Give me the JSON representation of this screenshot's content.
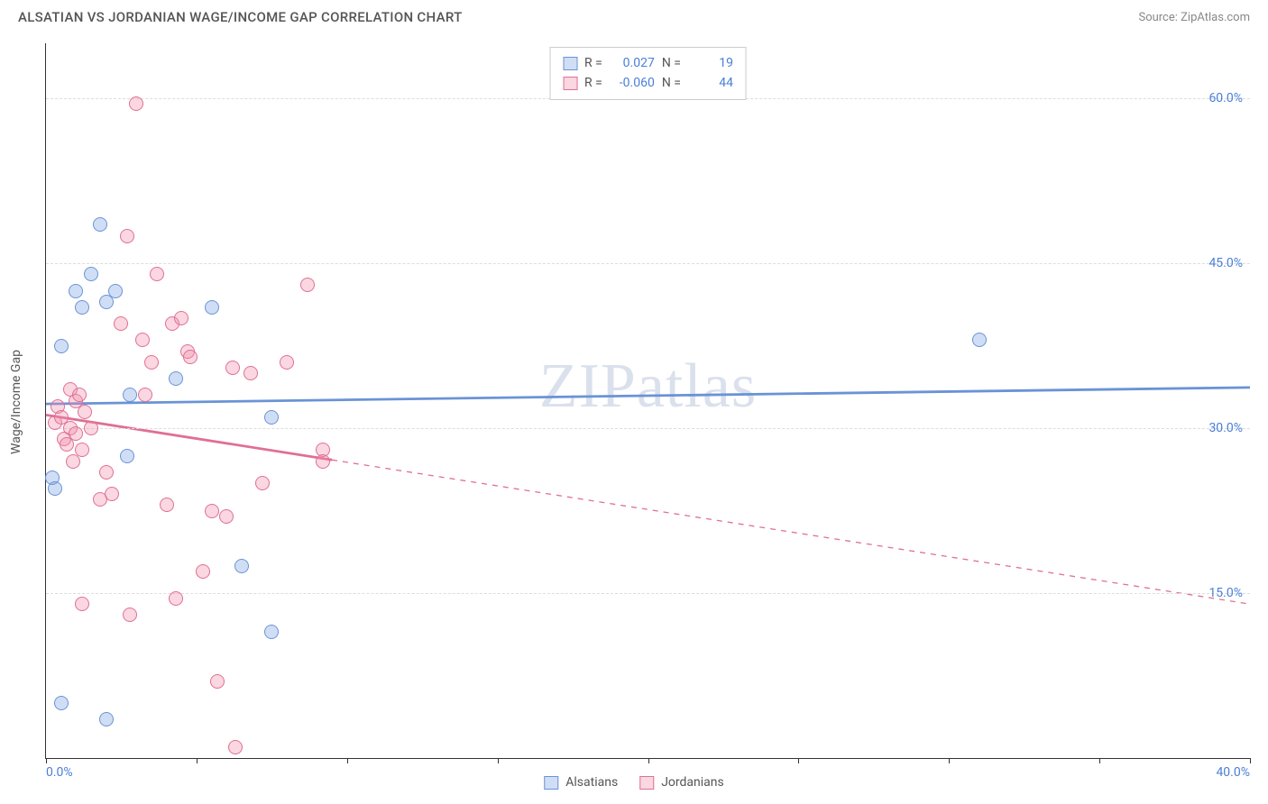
{
  "title": "ALSATIAN VS JORDANIAN WAGE/INCOME GAP CORRELATION CHART",
  "source": "Source: ZipAtlas.com",
  "watermark": "ZIPatlas",
  "ylabel": "Wage/Income Gap",
  "chart": {
    "type": "scatter",
    "xlim": [
      0,
      40
    ],
    "ylim": [
      0,
      65
    ],
    "xticks": [
      0,
      5,
      10,
      15,
      20,
      25,
      30,
      35,
      40
    ],
    "xtick_labels": [
      "0.0%",
      "",
      "",
      "",
      "",
      "",
      "",
      "",
      "40.0%"
    ],
    "yticks": [
      15,
      30,
      45,
      60
    ],
    "ytick_labels": [
      "15.0%",
      "30.0%",
      "45.0%",
      "60.0%"
    ],
    "background_color": "#ffffff",
    "grid_color": "#dddddd",
    "axis_color": "#333333",
    "label_color": "#4a7fd8",
    "title_fontsize": 15,
    "tick_fontsize": 14,
    "marker_radius": 8,
    "marker_stroke_width": 1.2,
    "series": [
      {
        "name": "Alsatians",
        "fill": "rgba(120,160,225,0.35)",
        "stroke": "#6a93d6",
        "R": "0.027",
        "N": "19",
        "points": [
          [
            0.2,
            25.5
          ],
          [
            0.3,
            24.5
          ],
          [
            0.5,
            37.5
          ],
          [
            0.5,
            5.0
          ],
          [
            1.0,
            42.5
          ],
          [
            1.2,
            41.0
          ],
          [
            1.5,
            44.0
          ],
          [
            1.8,
            48.5
          ],
          [
            2.0,
            41.5
          ],
          [
            2.0,
            3.5
          ],
          [
            2.3,
            42.5
          ],
          [
            2.7,
            27.5
          ],
          [
            2.8,
            33.0
          ],
          [
            4.3,
            34.5
          ],
          [
            5.5,
            41.0
          ],
          [
            6.5,
            17.5
          ],
          [
            7.5,
            11.5
          ],
          [
            7.5,
            31.0
          ],
          [
            31.0,
            38.0
          ]
        ],
        "trend": {
          "x1": 0,
          "y1": 32.2,
          "x2": 40,
          "y2": 33.7,
          "solid_upto": 40,
          "stroke_width": 2.8
        }
      },
      {
        "name": "Jordanians",
        "fill": "rgba(240,140,170,0.35)",
        "stroke": "#e06f96",
        "R": "-0.060",
        "N": "44",
        "points": [
          [
            0.3,
            30.5
          ],
          [
            0.4,
            32.0
          ],
          [
            0.5,
            31.0
          ],
          [
            0.6,
            29.0
          ],
          [
            0.7,
            28.5
          ],
          [
            0.8,
            33.5
          ],
          [
            0.8,
            30.0
          ],
          [
            0.9,
            27.0
          ],
          [
            1.0,
            32.5
          ],
          [
            1.0,
            29.5
          ],
          [
            1.1,
            33.0
          ],
          [
            1.2,
            28.0
          ],
          [
            1.2,
            14.0
          ],
          [
            1.3,
            31.5
          ],
          [
            1.5,
            30.0
          ],
          [
            1.8,
            23.5
          ],
          [
            2.0,
            26.0
          ],
          [
            2.2,
            24.0
          ],
          [
            2.5,
            39.5
          ],
          [
            2.7,
            47.5
          ],
          [
            2.8,
            13.0
          ],
          [
            3.0,
            59.5
          ],
          [
            3.2,
            38.0
          ],
          [
            3.3,
            33.0
          ],
          [
            3.5,
            36.0
          ],
          [
            3.7,
            44.0
          ],
          [
            4.0,
            23.0
          ],
          [
            4.2,
            39.5
          ],
          [
            4.3,
            14.5
          ],
          [
            4.5,
            40.0
          ],
          [
            4.7,
            37.0
          ],
          [
            4.8,
            36.5
          ],
          [
            5.2,
            17.0
          ],
          [
            5.5,
            22.5
          ],
          [
            5.7,
            7.0
          ],
          [
            6.0,
            22.0
          ],
          [
            6.2,
            35.5
          ],
          [
            6.3,
            1.0
          ],
          [
            6.8,
            35.0
          ],
          [
            7.2,
            25.0
          ],
          [
            8.0,
            36.0
          ],
          [
            8.7,
            43.0
          ],
          [
            9.2,
            28.0
          ],
          [
            9.2,
            27.0
          ]
        ],
        "trend": {
          "x1": 0,
          "y1": 31.2,
          "x2": 40,
          "y2": 14.0,
          "solid_upto": 9.5,
          "stroke_width": 2.8
        }
      }
    ]
  },
  "legend_top": {
    "r_label": "R =",
    "n_label": "N ="
  },
  "legend_bottom": [
    "Alsatians",
    "Jordanians"
  ]
}
